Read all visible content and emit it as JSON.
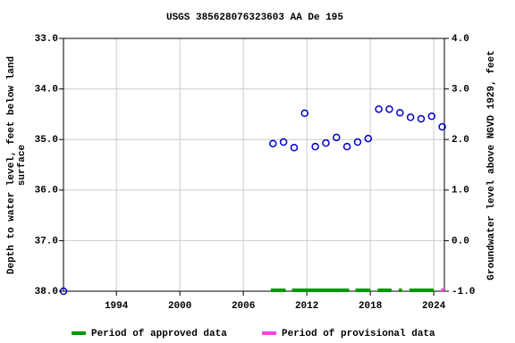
{
  "chart_data": {
    "type": "scatter",
    "title": "USGS 385628076323603 AA De 195",
    "ylabel": [
      "Depth to water level, feet below land",
      "surface"
    ],
    "y2label": "Groundwater level above NGVD 1929, feet",
    "x": [
      1989.0,
      2008.8,
      2009.8,
      2010.8,
      2011.8,
      2012.8,
      2013.8,
      2014.8,
      2015.8,
      2016.8,
      2017.8,
      2018.8,
      2019.8,
      2020.8,
      2021.8,
      2022.8,
      2023.8,
      2024.8
    ],
    "series": [
      {
        "color": "#0000cc",
        "values": [
          38.0,
          35.08,
          35.05,
          35.16,
          34.48,
          35.14,
          35.07,
          34.96,
          35.14,
          35.05,
          34.98,
          34.4,
          34.4,
          34.47,
          34.56,
          34.59,
          34.54,
          34.75
        ]
      }
    ],
    "xlim": [
      1989,
      2025
    ],
    "xticks": [
      1994,
      2000,
      2006,
      2012,
      2018,
      2024
    ],
    "ylim": [
      38,
      33
    ],
    "yticks": [
      {
        "value": 33,
        "label": "33.0"
      },
      {
        "value": 34,
        "label": "34.0"
      },
      {
        "value": 35,
        "label": "35.0"
      },
      {
        "value": 36,
        "label": "36.0"
      },
      {
        "value": 37,
        "label": "37.0"
      },
      {
        "value": 38,
        "label": "38.0"
      }
    ],
    "y2lim": [
      -1,
      4
    ],
    "y2ticks": [
      {
        "value": 4,
        "label": "4.0"
      },
      {
        "value": 3,
        "label": "3.0"
      },
      {
        "value": 2,
        "label": "2.0"
      },
      {
        "value": 1,
        "label": "1.0"
      },
      {
        "value": 0,
        "label": "0.0"
      },
      {
        "value": -1,
        "label": "-1.0"
      }
    ],
    "grid": true,
    "periods": [
      {
        "name": "Period of approved data",
        "color": "#009900",
        "ranges": [
          [
            2008.6,
            2010.0
          ],
          [
            2010.6,
            2016.0
          ],
          [
            2016.6,
            2018.0
          ],
          [
            2018.7,
            2020.0
          ],
          [
            2020.7,
            2021.0
          ],
          [
            2021.7,
            2024.0
          ]
        ]
      },
      {
        "name": "Period of provisional data",
        "color": "#ff44dd",
        "ranges": [
          [
            2024.7,
            2025.0
          ]
        ]
      }
    ]
  }
}
